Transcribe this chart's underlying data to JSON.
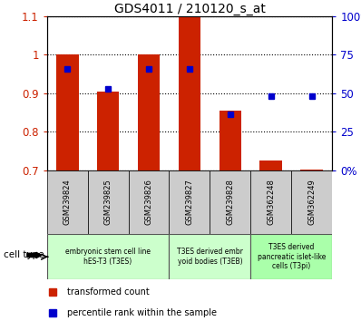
{
  "title": "GDS4011 / 210120_s_at",
  "samples": [
    "GSM239824",
    "GSM239825",
    "GSM239826",
    "GSM239827",
    "GSM239828",
    "GSM362248",
    "GSM362249"
  ],
  "red_values": [
    1.0,
    0.905,
    1.0,
    1.1,
    0.855,
    0.725,
    0.702
  ],
  "blue_values": [
    0.962,
    0.912,
    0.962,
    0.962,
    0.845,
    0.893,
    0.892
  ],
  "ylim": [
    0.7,
    1.1
  ],
  "yticks": [
    0.7,
    0.8,
    0.9,
    1.0,
    1.1
  ],
  "right_yticks_pct": [
    0,
    25,
    50,
    75,
    100
  ],
  "right_ylabels": [
    "0%",
    "25",
    "50",
    "75",
    "100%"
  ],
  "red_color": "#cc2200",
  "blue_color": "#0000cc",
  "bar_width": 0.55,
  "cell_groups": [
    {
      "label": "embryonic stem cell line\nhES-T3 (T3ES)",
      "start": 0,
      "end": 2,
      "color": "#ccffcc"
    },
    {
      "label": "T3ES derived embr\nyoid bodies (T3EB)",
      "start": 3,
      "end": 4,
      "color": "#ccffcc"
    },
    {
      "label": "T3ES derived\npancreatic islet-like\ncells (T3pi)",
      "start": 5,
      "end": 6,
      "color": "#aaffaa"
    }
  ],
  "legend_red": "transformed count",
  "legend_blue": "percentile rank within the sample",
  "cell_type_label": "cell type",
  "bg_color": "#ffffff"
}
